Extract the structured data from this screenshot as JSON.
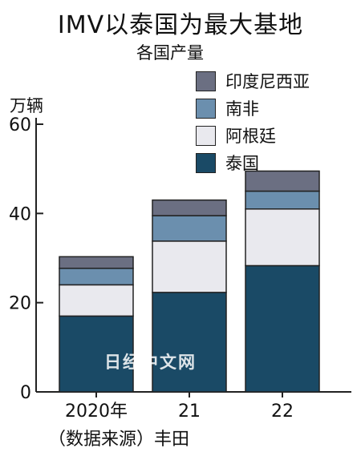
{
  "chart_data": {
    "type": "bar",
    "stacked": true,
    "title": "IMV以泰国为最大基地",
    "subtitle": "各国产量",
    "ylabel": "万辆",
    "categories": [
      "2020年",
      "21",
      "22"
    ],
    "ylim": [
      0,
      60
    ],
    "yticks": [
      0,
      20,
      40,
      60
    ],
    "series": [
      {
        "name": "泰国",
        "color": "#1a4a66",
        "values": [
          17,
          22.3,
          28.3
        ]
      },
      {
        "name": "阿根廷",
        "color": "#e9e9ee",
        "values": [
          7,
          11.5,
          12.7
        ]
      },
      {
        "name": "南非",
        "color": "#6b8fae",
        "values": [
          3.7,
          5.7,
          4
        ]
      },
      {
        "name": "印度尼西亚",
        "color": "#6b6f82",
        "values": [
          2.6,
          3.5,
          4.5
        ]
      }
    ],
    "legend_order": [
      "印度尼西亚",
      "南非",
      "阿根廷",
      "泰国"
    ],
    "source": "（数据来源）丰田",
    "watermark": "日经中文网"
  }
}
